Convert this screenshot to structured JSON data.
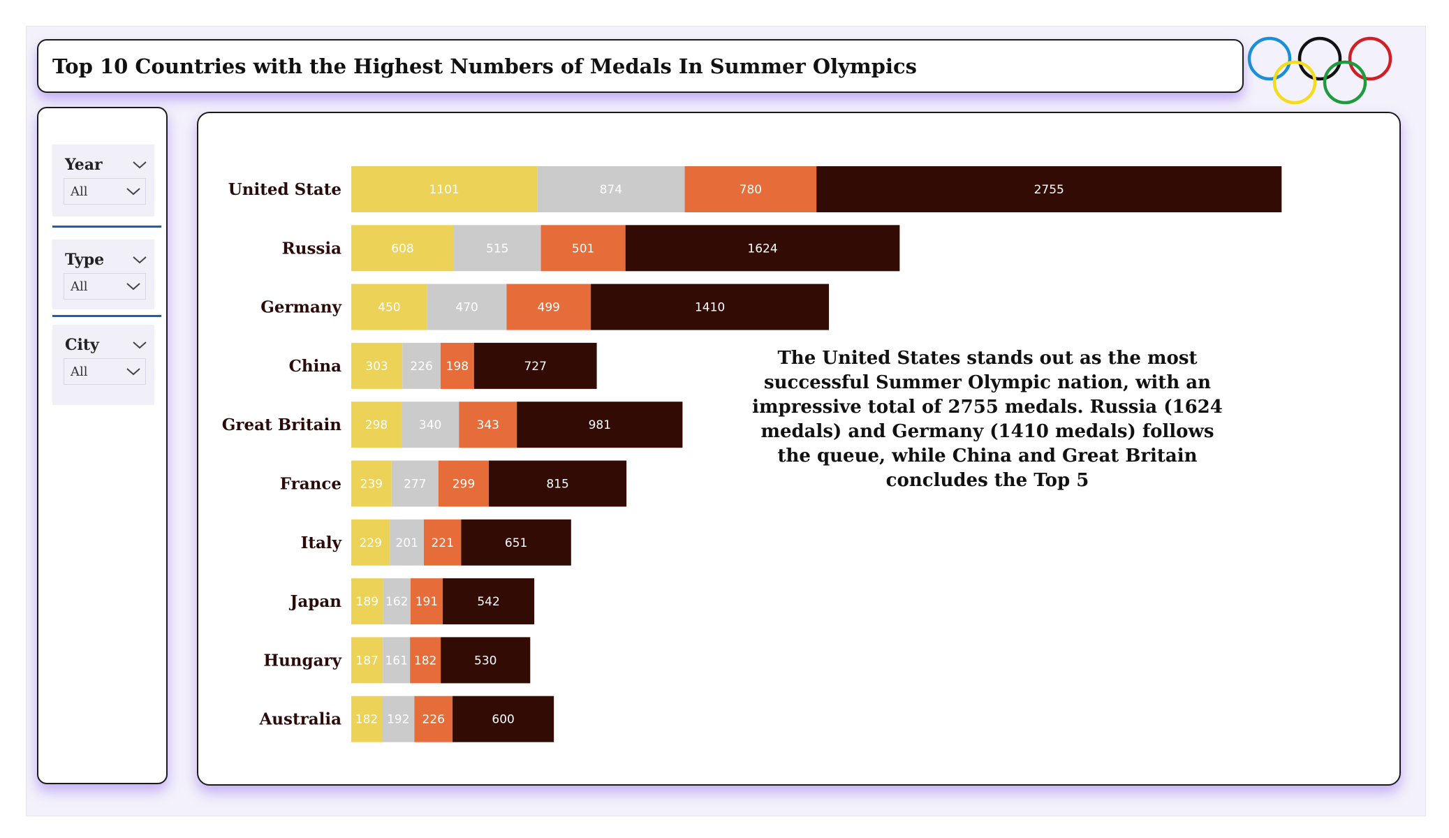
{
  "header": {
    "title": "Top 10 Countries with the Highest Numbers of Medals In Summer Olympics"
  },
  "logo": {
    "name": "olympic-rings",
    "colors": [
      "#1a8fd6",
      "#111111",
      "#d21f26",
      "#f2dc1c",
      "#1f9a3f"
    ]
  },
  "filters": [
    {
      "label": "Year",
      "value": "All"
    },
    {
      "label": "Type",
      "value": "All"
    },
    {
      "label": "City",
      "value": "All"
    }
  ],
  "annotation": "The United States stands out as the most successful Summer Olympic nation, with an impressive total of 2755 medals. Russia (1624 medals) and Germany (1410 medals) follows the queue, while China and Great Britain concludes the Top 5",
  "colors": {
    "gold": "#ecd257",
    "silver": "#cbcbcb",
    "bronze": "#e66d39",
    "total": "#330b05",
    "accent": "#1f5fa8",
    "shadow": "#a078f0"
  },
  "chart_data": {
    "type": "bar",
    "orientation": "horizontal",
    "stacked": true,
    "categories": [
      "United State",
      "Russia",
      "Germany",
      "China",
      "Great Britain",
      "France",
      "Italy",
      "Japan",
      "Hungary",
      "Australia"
    ],
    "series": [
      {
        "values": [
          1101,
          608,
          450,
          303,
          298,
          239,
          229,
          189,
          187,
          182
        ],
        "color": "#ecd257"
      },
      {
        "values": [
          874,
          515,
          470,
          226,
          340,
          277,
          201,
          162,
          161,
          192
        ],
        "color": "#cbcbcb"
      },
      {
        "values": [
          780,
          501,
          499,
          198,
          343,
          299,
          221,
          191,
          182,
          226
        ],
        "color": "#e66d39"
      },
      {
        "values": [
          2755,
          1624,
          1410,
          727,
          981,
          815,
          651,
          542,
          530,
          600
        ],
        "color": "#330b05"
      }
    ],
    "grid": false,
    "legend": "none"
  }
}
